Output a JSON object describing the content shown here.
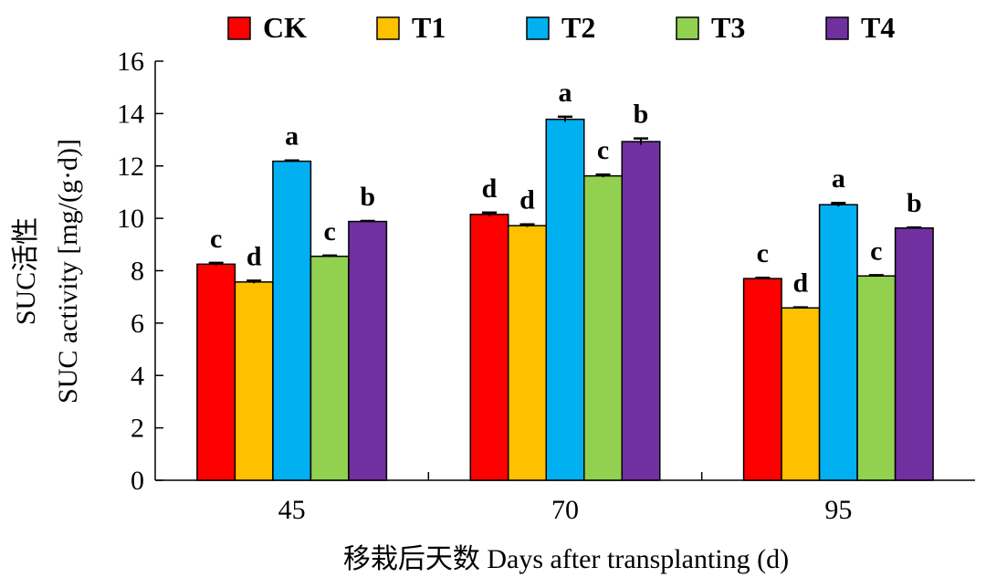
{
  "chart_data": {
    "type": "bar",
    "categories": [
      "45",
      "70",
      "95"
    ],
    "series": [
      {
        "name": "CK",
        "color": "#ff0000",
        "values": [
          8.25,
          10.15,
          7.7
        ],
        "errors": [
          0.05,
          0.07,
          0.03
        ],
        "labels": [
          "c",
          "d",
          "c"
        ]
      },
      {
        "name": "T1",
        "color": "#ffc000",
        "values": [
          7.57,
          9.72,
          6.58
        ],
        "errors": [
          0.05,
          0.05,
          0.02
        ],
        "labels": [
          "d",
          "d",
          "d"
        ]
      },
      {
        "name": "T2",
        "color": "#00b0f0",
        "values": [
          12.18,
          13.78,
          10.52
        ],
        "errors": [
          0.03,
          0.1,
          0.07
        ],
        "labels": [
          "a",
          "a",
          "a"
        ]
      },
      {
        "name": "T3",
        "color": "#92d050",
        "values": [
          8.55,
          11.62,
          7.8
        ],
        "errors": [
          0.03,
          0.05,
          0.03
        ],
        "labels": [
          "c",
          "c",
          "c"
        ]
      },
      {
        "name": "T4",
        "color": "#7030a0",
        "values": [
          9.88,
          12.93,
          9.63
        ],
        "errors": [
          0.02,
          0.12,
          0.02
        ],
        "labels": [
          "b",
          "b",
          "b"
        ]
      }
    ],
    "xlabel": "移栽后天数 Days after transplanting (d)",
    "ylabel_line1": "SUC活性",
    "ylabel_line2": "SUC activity [mg/(g·d)]",
    "ylim": [
      0,
      16
    ],
    "yticks": [
      "0",
      "2",
      "4",
      "6",
      "8",
      "10",
      "12",
      "14",
      "16"
    ],
    "grid": false,
    "legend_position": "top"
  }
}
